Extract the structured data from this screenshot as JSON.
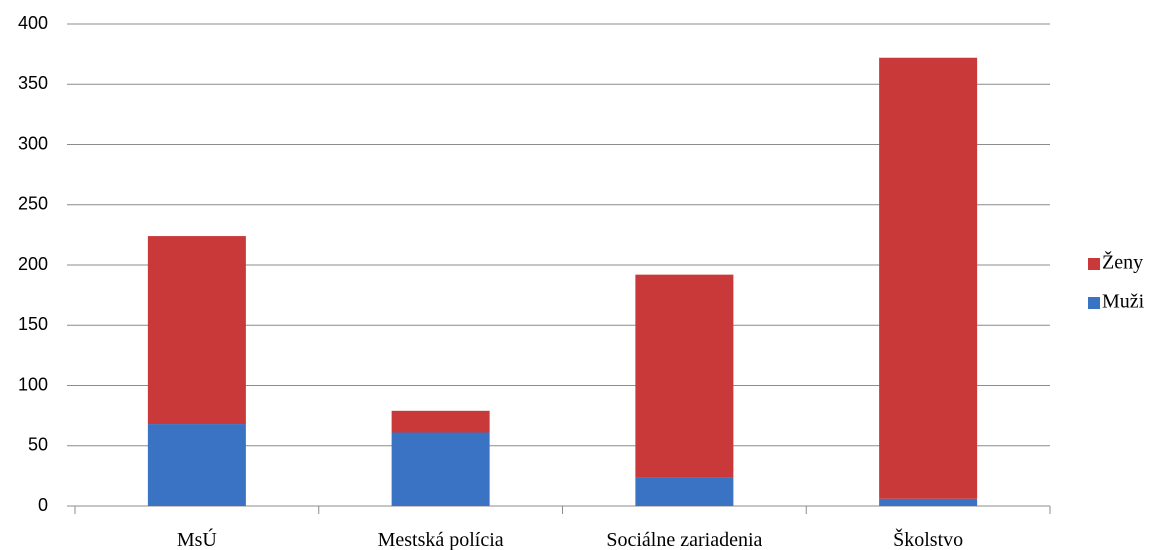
{
  "chart_data": {
    "type": "stacked_bar",
    "categories": [
      "MsÚ",
      "Mestská polícia",
      "Sociálne zariadenia",
      "Školstvo"
    ],
    "series": [
      {
        "name": "Muži",
        "color": "#3a72c4",
        "values": [
          68,
          61,
          24,
          6
        ]
      },
      {
        "name": "Ženy",
        "color": "#c9393a",
        "values": [
          156,
          18,
          168,
          366
        ]
      }
    ],
    "ylim": [
      0,
      400
    ],
    "yticks": [
      0,
      50,
      100,
      150,
      200,
      250,
      300,
      350,
      400
    ],
    "grid": true
  }
}
